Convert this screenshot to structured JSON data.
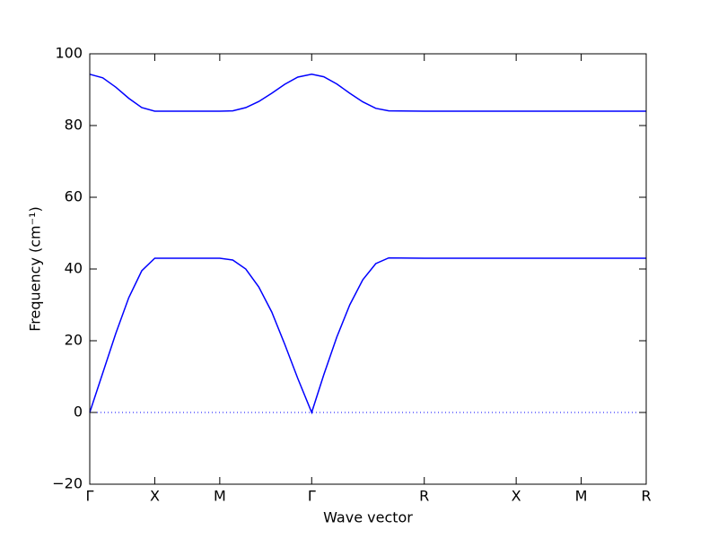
{
  "chart_data": {
    "type": "line",
    "xlabel": "Wave vector",
    "ylabel": "Frequency (cm⁻¹)",
    "x": [
      0,
      0.1,
      0.2,
      0.3,
      0.4,
      0.5,
      1.0,
      1.1,
      1.2,
      1.3,
      1.4,
      1.5,
      1.6,
      1.707,
      1.8,
      1.9,
      2.0,
      2.1,
      2.2,
      2.3,
      2.573,
      3.28,
      3.78,
      4.28
    ],
    "series": [
      {
        "color": "#0000ff",
        "values": [
          94.3,
          93.3,
          90.7,
          87.6,
          85.0,
          84.0,
          84.0,
          84.1,
          85.0,
          86.7,
          89.0,
          91.5,
          93.5,
          94.3,
          93.6,
          91.6,
          89.0,
          86.6,
          84.8,
          84.1,
          84.0,
          84.0,
          84.0,
          84.0
        ]
      },
      {
        "color": "#0000ff",
        "values": [
          0,
          11,
          22,
          32,
          39.5,
          43,
          43,
          42.5,
          40,
          35,
          28,
          19,
          9.5,
          0,
          10.5,
          21,
          30,
          37,
          41.5,
          43.1,
          43,
          43,
          43,
          43
        ]
      }
    ],
    "xlim": [
      0,
      4.28
    ],
    "xticks": [
      {
        "value": 0,
        "label": "Γ"
      },
      {
        "value": 0.5,
        "label": "X"
      },
      {
        "value": 1.0,
        "label": "M"
      },
      {
        "value": 1.707,
        "label": "Γ"
      },
      {
        "value": 2.573,
        "label": "R"
      },
      {
        "value": 3.28,
        "label": "X"
      },
      {
        "value": 3.78,
        "label": "M"
      },
      {
        "value": 4.28,
        "label": "R"
      }
    ],
    "ylim": [
      -20,
      100
    ],
    "yticks": [
      {
        "value": -20,
        "label": "−20"
      },
      0,
      20,
      40,
      60,
      80,
      100
    ],
    "reference_line": 0,
    "reference_color": "#0000ff"
  }
}
